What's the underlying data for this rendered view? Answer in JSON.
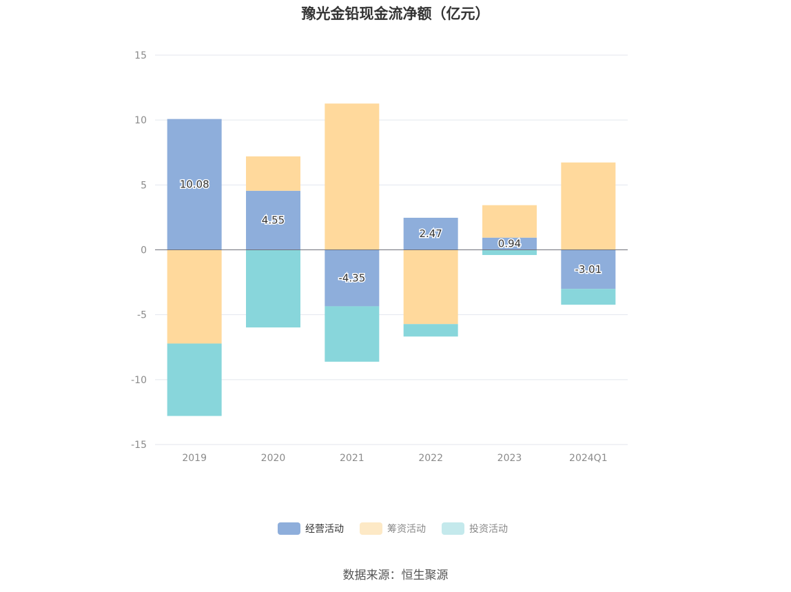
{
  "title": "豫光金铅现金流净额（亿元）",
  "source": "数据来源：恒生聚源",
  "chart_data": {
    "type": "bar",
    "stacked": true,
    "categories": [
      "2019",
      "2020",
      "2021",
      "2022",
      "2023",
      "2024Q1"
    ],
    "series": [
      {
        "name": "经营活动",
        "color": "#8eaedb",
        "values": [
          10.08,
          4.55,
          -4.35,
          2.47,
          0.94,
          -3.01
        ],
        "show_labels": true
      },
      {
        "name": "筹资活动",
        "color": "#ffd99c",
        "values": [
          -7.22,
          2.65,
          11.27,
          -5.72,
          2.5,
          6.73
        ],
        "show_labels": false
      },
      {
        "name": "投资活动",
        "color": "#88d6db",
        "values": [
          -5.58,
          -5.98,
          -4.27,
          -0.96,
          -0.4,
          -1.22
        ],
        "show_labels": false
      }
    ],
    "legend_position": "bottom",
    "legend_colors_inactive": [
      "#8eaedb",
      "#fde9c6",
      "#c4e9ec"
    ],
    "ylim": [
      -15,
      15
    ],
    "yticks": [
      15,
      10,
      5,
      0,
      -5,
      -10,
      -15
    ],
    "grid": true
  }
}
